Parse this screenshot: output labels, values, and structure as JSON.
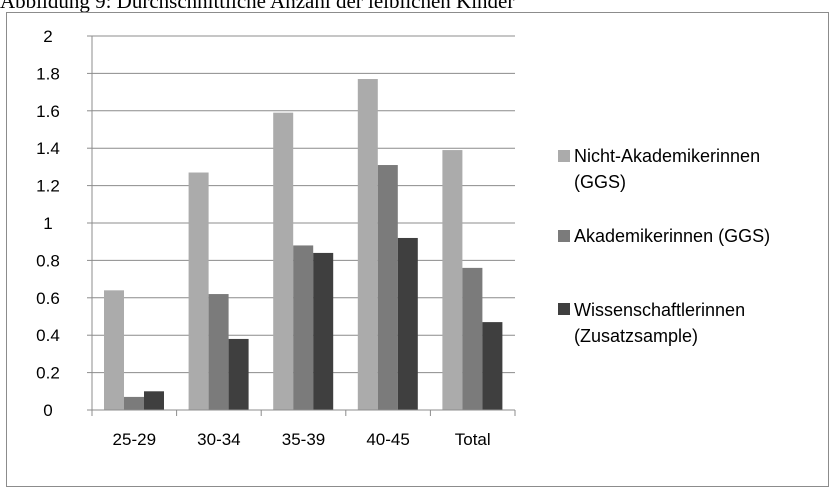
{
  "caption": "Abbildung 9: Durchschnittliche Anzahl der leiblichen Kinder",
  "chart_data": {
    "type": "bar",
    "title": "",
    "xlabel": "",
    "ylabel": "",
    "ylim": [
      0,
      2
    ],
    "yticks": [
      "0",
      "0.2",
      "0.4",
      "0.6",
      "0.8",
      "1",
      "1.2",
      "1.4",
      "1.6",
      "1.8",
      "2"
    ],
    "categories": [
      "25-29",
      "30-34",
      "35-39",
      "40-45",
      "Total"
    ],
    "grid": true,
    "legend_position": "right",
    "series": [
      {
        "name": "Nicht-Akademikerinnen (GGS)",
        "legend_lines": [
          "Nicht-Akademikerinnen",
          "(GGS)"
        ],
        "color": "#ababab",
        "values": [
          0.64,
          1.27,
          1.59,
          1.77,
          1.39
        ]
      },
      {
        "name": "Akademikerinnen (GGS)",
        "legend_lines": [
          "Akademikerinnen (GGS)"
        ],
        "color": "#7b7b7b",
        "values": [
          0.07,
          0.62,
          0.88,
          1.31,
          0.76
        ]
      },
      {
        "name": "Wissenschaftlerinnen (Zusatzsample)",
        "legend_lines": [
          "Wissenschaftlerinnen",
          "(Zusatzsample)"
        ],
        "color": "#3f3f3f",
        "values": [
          0.1,
          0.38,
          0.84,
          0.92,
          0.47
        ]
      }
    ]
  }
}
